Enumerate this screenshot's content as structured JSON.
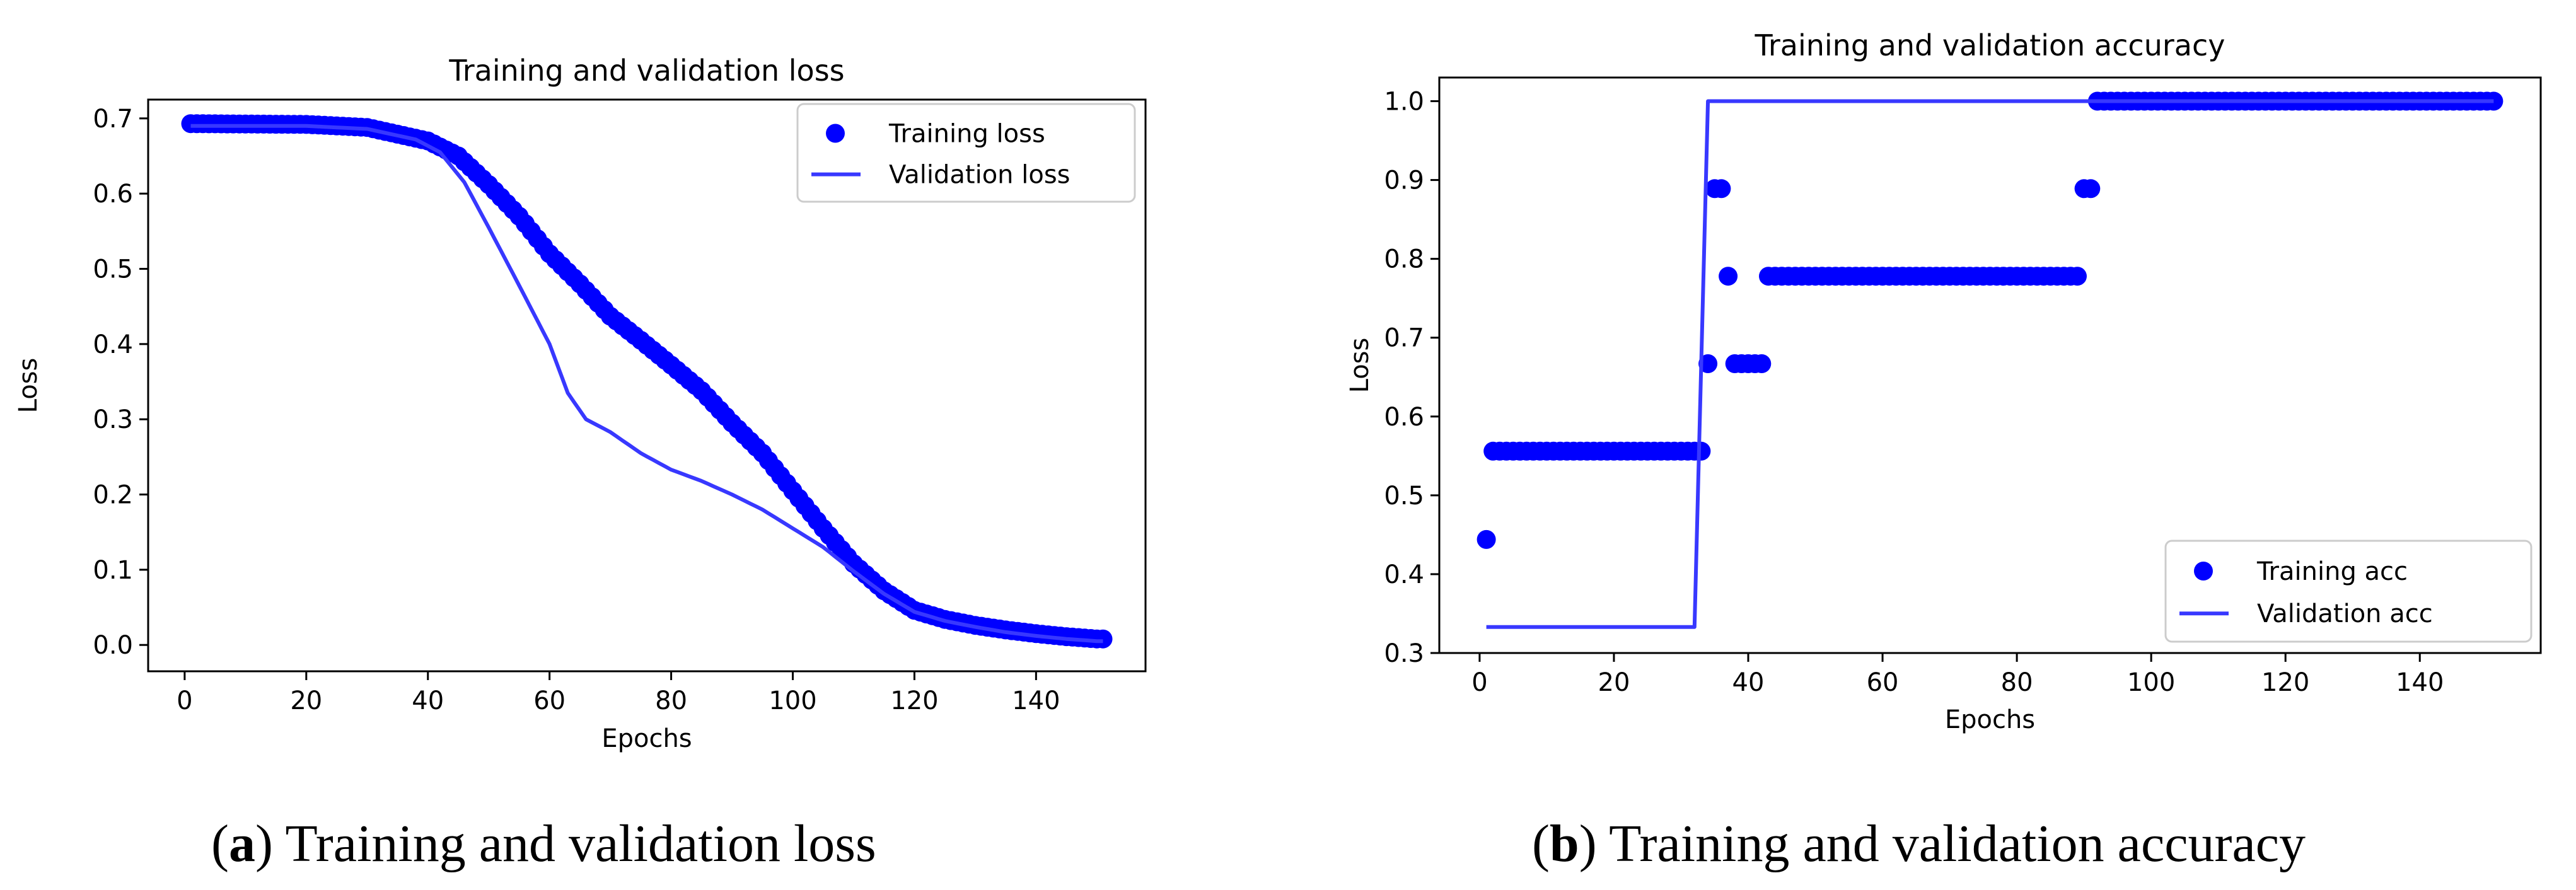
{
  "figure_captions": [
    {
      "letter": "a",
      "open": "(",
      "close": ")",
      "text": " Training and validation loss"
    },
    {
      "letter": "b",
      "open": "(",
      "close": ")",
      "text": " Training and validation accuracy"
    }
  ],
  "chart_data": [
    {
      "type": "line",
      "title": "Training and validation loss",
      "xlabel": "Epochs",
      "ylabel": "Loss",
      "xlim": [
        -6,
        158
      ],
      "ylim": [
        -0.035,
        0.725
      ],
      "xticks": [
        0,
        20,
        40,
        60,
        80,
        100,
        120,
        140
      ],
      "yticks": [
        0.0,
        0.1,
        0.2,
        0.3,
        0.4,
        0.5,
        0.6,
        0.7
      ],
      "ytick_decimals": 1,
      "grid": false,
      "legend": "top-right",
      "colors": {
        "training": "#0000ff",
        "validation": "#3838ff"
      },
      "series": [
        {
          "name": "Training loss",
          "style": "markers",
          "key_points": [
            [
              1,
              0.693
            ],
            [
              20,
              0.692
            ],
            [
              30,
              0.688
            ],
            [
              40,
              0.67
            ],
            [
              45,
              0.65
            ],
            [
              50,
              0.612
            ],
            [
              55,
              0.57
            ],
            [
              60,
              0.52
            ],
            [
              65,
              0.48
            ],
            [
              70,
              0.437
            ],
            [
              75,
              0.405
            ],
            [
              80,
              0.372
            ],
            [
              85,
              0.338
            ],
            [
              90,
              0.295
            ],
            [
              95,
              0.255
            ],
            [
              100,
              0.205
            ],
            [
              105,
              0.155
            ],
            [
              110,
              0.108
            ],
            [
              115,
              0.072
            ],
            [
              120,
              0.046
            ],
            [
              125,
              0.034
            ],
            [
              130,
              0.026
            ],
            [
              135,
              0.02
            ],
            [
              140,
              0.015
            ],
            [
              145,
              0.011
            ],
            [
              150,
              0.008
            ]
          ]
        },
        {
          "name": "Validation loss",
          "style": "line",
          "key_points": [
            [
              1,
              0.69
            ],
            [
              20,
              0.69
            ],
            [
              30,
              0.686
            ],
            [
              38,
              0.672
            ],
            [
              42,
              0.655
            ],
            [
              46,
              0.615
            ],
            [
              50,
              0.555
            ],
            [
              55,
              0.478
            ],
            [
              60,
              0.4
            ],
            [
              63,
              0.335
            ],
            [
              66,
              0.3
            ],
            [
              70,
              0.283
            ],
            [
              75,
              0.255
            ],
            [
              80,
              0.233
            ],
            [
              85,
              0.218
            ],
            [
              90,
              0.2
            ],
            [
              95,
              0.18
            ],
            [
              100,
              0.155
            ],
            [
              105,
              0.13
            ],
            [
              110,
              0.098
            ],
            [
              115,
              0.068
            ],
            [
              120,
              0.044
            ],
            [
              125,
              0.032
            ],
            [
              130,
              0.024
            ],
            [
              135,
              0.017
            ],
            [
              140,
              0.012
            ],
            [
              145,
              0.008
            ],
            [
              150,
              0.005
            ]
          ]
        }
      ]
    },
    {
      "type": "line",
      "title": "Training and validation accuracy",
      "xlabel": "Epochs",
      "ylabel": "Loss",
      "xlim": [
        -6,
        158
      ],
      "ylim": [
        0.3,
        1.03
      ],
      "xticks": [
        0,
        20,
        40,
        60,
        80,
        100,
        120,
        140
      ],
      "yticks": [
        0.3,
        0.4,
        0.5,
        0.6,
        0.7,
        0.8,
        0.9,
        1.0
      ],
      "ytick_decimals": 1,
      "grid": false,
      "legend": "bottom-right",
      "colors": {
        "training": "#0000ff",
        "validation": "#3838ff"
      },
      "series": [
        {
          "name": "Training acc",
          "style": "markers",
          "points": [
            [
              1,
              0.444
            ],
            [
              2,
              0.556
            ],
            [
              3,
              0.556
            ],
            [
              4,
              0.556
            ],
            [
              5,
              0.556
            ],
            [
              6,
              0.556
            ],
            [
              7,
              0.556
            ],
            [
              8,
              0.556
            ],
            [
              9,
              0.556
            ],
            [
              10,
              0.556
            ],
            [
              11,
              0.556
            ],
            [
              12,
              0.556
            ],
            [
              13,
              0.556
            ],
            [
              14,
              0.556
            ],
            [
              15,
              0.556
            ],
            [
              16,
              0.556
            ],
            [
              17,
              0.556
            ],
            [
              18,
              0.556
            ],
            [
              19,
              0.556
            ],
            [
              20,
              0.556
            ],
            [
              21,
              0.556
            ],
            [
              22,
              0.556
            ],
            [
              23,
              0.556
            ],
            [
              24,
              0.556
            ],
            [
              25,
              0.556
            ],
            [
              26,
              0.556
            ],
            [
              27,
              0.556
            ],
            [
              28,
              0.556
            ],
            [
              29,
              0.556
            ],
            [
              30,
              0.556
            ],
            [
              31,
              0.556
            ],
            [
              32,
              0.556
            ],
            [
              33,
              0.556
            ],
            [
              34,
              0.667
            ],
            [
              35,
              0.889
            ],
            [
              36,
              0.889
            ],
            [
              37,
              0.778
            ],
            [
              38,
              0.667
            ],
            [
              39,
              0.667
            ],
            [
              40,
              0.667
            ],
            [
              41,
              0.667
            ],
            [
              42,
              0.667
            ],
            [
              43,
              0.778
            ],
            [
              44,
              0.778
            ],
            [
              45,
              0.778
            ],
            [
              46,
              0.778
            ],
            [
              47,
              0.778
            ],
            [
              48,
              0.778
            ],
            [
              49,
              0.778
            ],
            [
              50,
              0.778
            ],
            [
              51,
              0.778
            ],
            [
              52,
              0.778
            ],
            [
              53,
              0.778
            ],
            [
              54,
              0.778
            ],
            [
              55,
              0.778
            ],
            [
              56,
              0.778
            ],
            [
              57,
              0.778
            ],
            [
              58,
              0.778
            ],
            [
              59,
              0.778
            ],
            [
              60,
              0.778
            ],
            [
              61,
              0.778
            ],
            [
              62,
              0.778
            ],
            [
              63,
              0.778
            ],
            [
              64,
              0.778
            ],
            [
              65,
              0.778
            ],
            [
              66,
              0.778
            ],
            [
              67,
              0.778
            ],
            [
              68,
              0.778
            ],
            [
              69,
              0.778
            ],
            [
              70,
              0.778
            ],
            [
              71,
              0.778
            ],
            [
              72,
              0.778
            ],
            [
              73,
              0.778
            ],
            [
              74,
              0.778
            ],
            [
              75,
              0.778
            ],
            [
              76,
              0.778
            ],
            [
              77,
              0.778
            ],
            [
              78,
              0.778
            ],
            [
              79,
              0.778
            ],
            [
              80,
              0.778
            ],
            [
              81,
              0.778
            ],
            [
              82,
              0.778
            ],
            [
              83,
              0.778
            ],
            [
              84,
              0.778
            ],
            [
              85,
              0.778
            ],
            [
              86,
              0.778
            ],
            [
              87,
              0.778
            ],
            [
              88,
              0.778
            ],
            [
              89,
              0.778
            ],
            [
              90,
              0.889
            ],
            [
              91,
              0.889
            ],
            [
              92,
              1.0
            ],
            [
              93,
              1.0
            ],
            [
              94,
              1.0
            ],
            [
              95,
              1.0
            ],
            [
              96,
              1.0
            ],
            [
              97,
              1.0
            ],
            [
              98,
              1.0
            ],
            [
              99,
              1.0
            ],
            [
              100,
              1.0
            ],
            [
              101,
              1.0
            ],
            [
              102,
              1.0
            ],
            [
              103,
              1.0
            ],
            [
              104,
              1.0
            ],
            [
              105,
              1.0
            ],
            [
              106,
              1.0
            ],
            [
              107,
              1.0
            ],
            [
              108,
              1.0
            ],
            [
              109,
              1.0
            ],
            [
              110,
              1.0
            ],
            [
              111,
              1.0
            ],
            [
              112,
              1.0
            ],
            [
              113,
              1.0
            ],
            [
              114,
              1.0
            ],
            [
              115,
              1.0
            ],
            [
              116,
              1.0
            ],
            [
              117,
              1.0
            ],
            [
              118,
              1.0
            ],
            [
              119,
              1.0
            ],
            [
              120,
              1.0
            ],
            [
              121,
              1.0
            ],
            [
              122,
              1.0
            ],
            [
              123,
              1.0
            ],
            [
              124,
              1.0
            ],
            [
              125,
              1.0
            ],
            [
              126,
              1.0
            ],
            [
              127,
              1.0
            ],
            [
              128,
              1.0
            ],
            [
              129,
              1.0
            ],
            [
              130,
              1.0
            ],
            [
              131,
              1.0
            ],
            [
              132,
              1.0
            ],
            [
              133,
              1.0
            ],
            [
              134,
              1.0
            ],
            [
              135,
              1.0
            ],
            [
              136,
              1.0
            ],
            [
              137,
              1.0
            ],
            [
              138,
              1.0
            ],
            [
              139,
              1.0
            ],
            [
              140,
              1.0
            ],
            [
              141,
              1.0
            ],
            [
              142,
              1.0
            ],
            [
              143,
              1.0
            ],
            [
              144,
              1.0
            ],
            [
              145,
              1.0
            ],
            [
              146,
              1.0
            ],
            [
              147,
              1.0
            ],
            [
              148,
              1.0
            ],
            [
              149,
              1.0
            ],
            [
              150,
              1.0
            ],
            [
              151,
              1.0
            ]
          ]
        },
        {
          "name": "Validation acc",
          "style": "line",
          "points": [
            [
              1,
              0.333
            ],
            [
              32,
              0.333
            ],
            [
              34,
              1.0
            ],
            [
              151,
              1.0
            ]
          ]
        }
      ]
    }
  ]
}
